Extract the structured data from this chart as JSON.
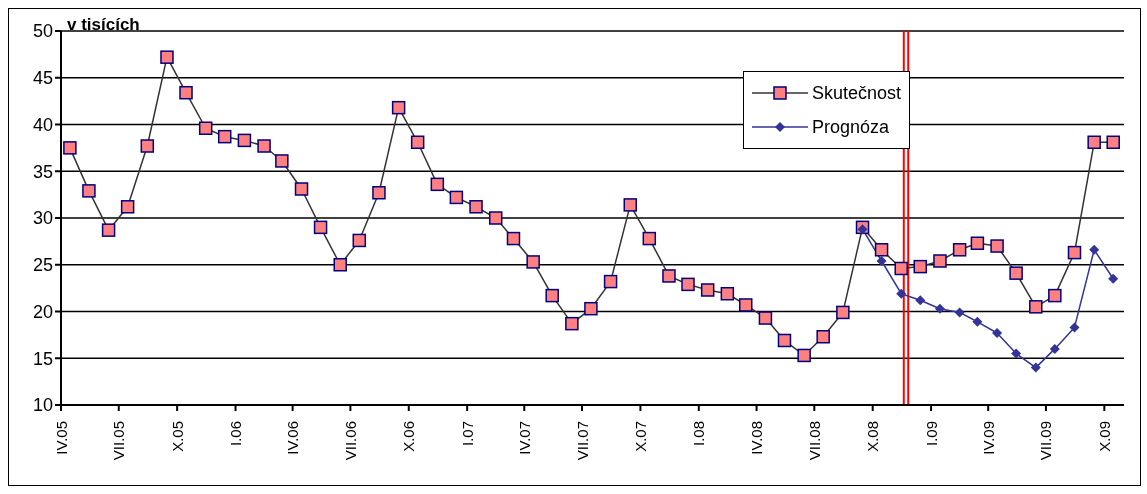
{
  "chart_data": {
    "type": "line",
    "ylabel": "v tisících",
    "x": [
      "2005-04-15",
      "2005-05-15",
      "2005-06-15",
      "2005-07-15",
      "2005-08-15",
      "2005-09-15",
      "2005-10-15",
      "2005-11-15",
      "2005-12-15",
      "2006-01-15",
      "2006-02-15",
      "2006-03-15",
      "2006-04-15",
      "2006-05-15",
      "2006-06-15",
      "2006-07-15",
      "2006-08-15",
      "2006-09-15",
      "2006-10-15",
      "2006-11-15",
      "2006-12-15",
      "2007-01-15",
      "2007-02-15",
      "2007-03-15",
      "2007-04-15",
      "2007-05-15",
      "2007-06-15",
      "2007-07-15",
      "2007-08-15",
      "2007-09-15",
      "2007-10-15",
      "2007-11-15",
      "2007-12-15",
      "2008-01-15",
      "2008-02-15",
      "2008-03-15",
      "2008-04-15",
      "2008-05-15",
      "2008-06-15",
      "2008-07-15",
      "2008-08-15",
      "2008-09-15",
      "2008-10-15",
      "2008-11-15",
      "2008-12-15",
      "2009-01-15",
      "2009-02-15",
      "2009-03-15",
      "2009-04-15",
      "2009-05-15",
      "2009-06-15",
      "2009-07-15",
      "2009-08-15",
      "2009-09-15",
      "2009-10-15"
    ],
    "series": [
      {
        "name": "Skutečnost",
        "color": "#ff8080",
        "marker": "square",
        "values": [
          37.5,
          32.9,
          28.7,
          31.2,
          37.7,
          47.2,
          43.4,
          39.6,
          38.7,
          38.3,
          37.7,
          36.1,
          33.1,
          29.0,
          25.0,
          27.6,
          32.7,
          41.8,
          38.1,
          33.6,
          32.2,
          31.2,
          30.0,
          27.8,
          25.3,
          21.7,
          18.7,
          20.3,
          23.2,
          31.4,
          27.8,
          23.8,
          22.9,
          22.3,
          21.9,
          20.7,
          19.3,
          16.9,
          15.3,
          17.3,
          19.9,
          29.0,
          26.6,
          24.6,
          24.8,
          25.4,
          26.6,
          27.3,
          27.0,
          24.1,
          20.5,
          21.7,
          26.3,
          38.1,
          38.1
        ]
      },
      {
        "name": "Prognóza",
        "color": "#333399",
        "marker": "diamond",
        "values": [
          null,
          null,
          null,
          null,
          null,
          null,
          null,
          null,
          null,
          null,
          null,
          null,
          null,
          null,
          null,
          null,
          null,
          null,
          null,
          null,
          null,
          null,
          null,
          null,
          null,
          null,
          null,
          null,
          null,
          null,
          null,
          null,
          null,
          null,
          null,
          null,
          null,
          null,
          null,
          null,
          null,
          28.8,
          25.4,
          21.9,
          21.2,
          20.3,
          19.9,
          18.9,
          17.7,
          15.5,
          14.0,
          16.0,
          18.3,
          26.6,
          23.5
        ]
      }
    ],
    "xlim": [
      "2005-04-01",
      "2009-11-01"
    ],
    "xticks": [
      {
        "value": "2005-04-01",
        "label": "IV.05"
      },
      {
        "value": "2005-07-01",
        "label": "VII.05"
      },
      {
        "value": "2005-10-01",
        "label": "X.05"
      },
      {
        "value": "2006-01-01",
        "label": "I.06"
      },
      {
        "value": "2006-04-01",
        "label": "IV.06"
      },
      {
        "value": "2006-07-01",
        "label": "VII.06"
      },
      {
        "value": "2006-10-01",
        "label": "X.06"
      },
      {
        "value": "2007-01-01",
        "label": "I.07"
      },
      {
        "value": "2007-04-01",
        "label": "IV.07"
      },
      {
        "value": "2007-07-01",
        "label": "VII.07"
      },
      {
        "value": "2007-10-01",
        "label": "X.07"
      },
      {
        "value": "2008-01-01",
        "label": "I.08"
      },
      {
        "value": "2008-04-01",
        "label": "IV.08"
      },
      {
        "value": "2008-07-01",
        "label": "VII.08"
      },
      {
        "value": "2008-10-01",
        "label": "X.08"
      },
      {
        "value": "2009-01-01",
        "label": "I.09"
      },
      {
        "value": "2009-04-01",
        "label": "IV.09"
      },
      {
        "value": "2009-07-01",
        "label": "VII.09"
      },
      {
        "value": "2009-10-01",
        "label": "X.09"
      }
    ],
    "ylim": [
      10,
      50
    ],
    "yticks": [
      10,
      15,
      20,
      25,
      30,
      35,
      40,
      45,
      50
    ],
    "grid": "y",
    "legend": "top right",
    "line_style": "solid",
    "ref_lines": [
      {
        "axis": "x",
        "value": "2008-11-19",
        "color": "#ff0000"
      },
      {
        "axis": "x",
        "value": "2008-11-26",
        "color": "#ff0000"
      }
    ]
  }
}
